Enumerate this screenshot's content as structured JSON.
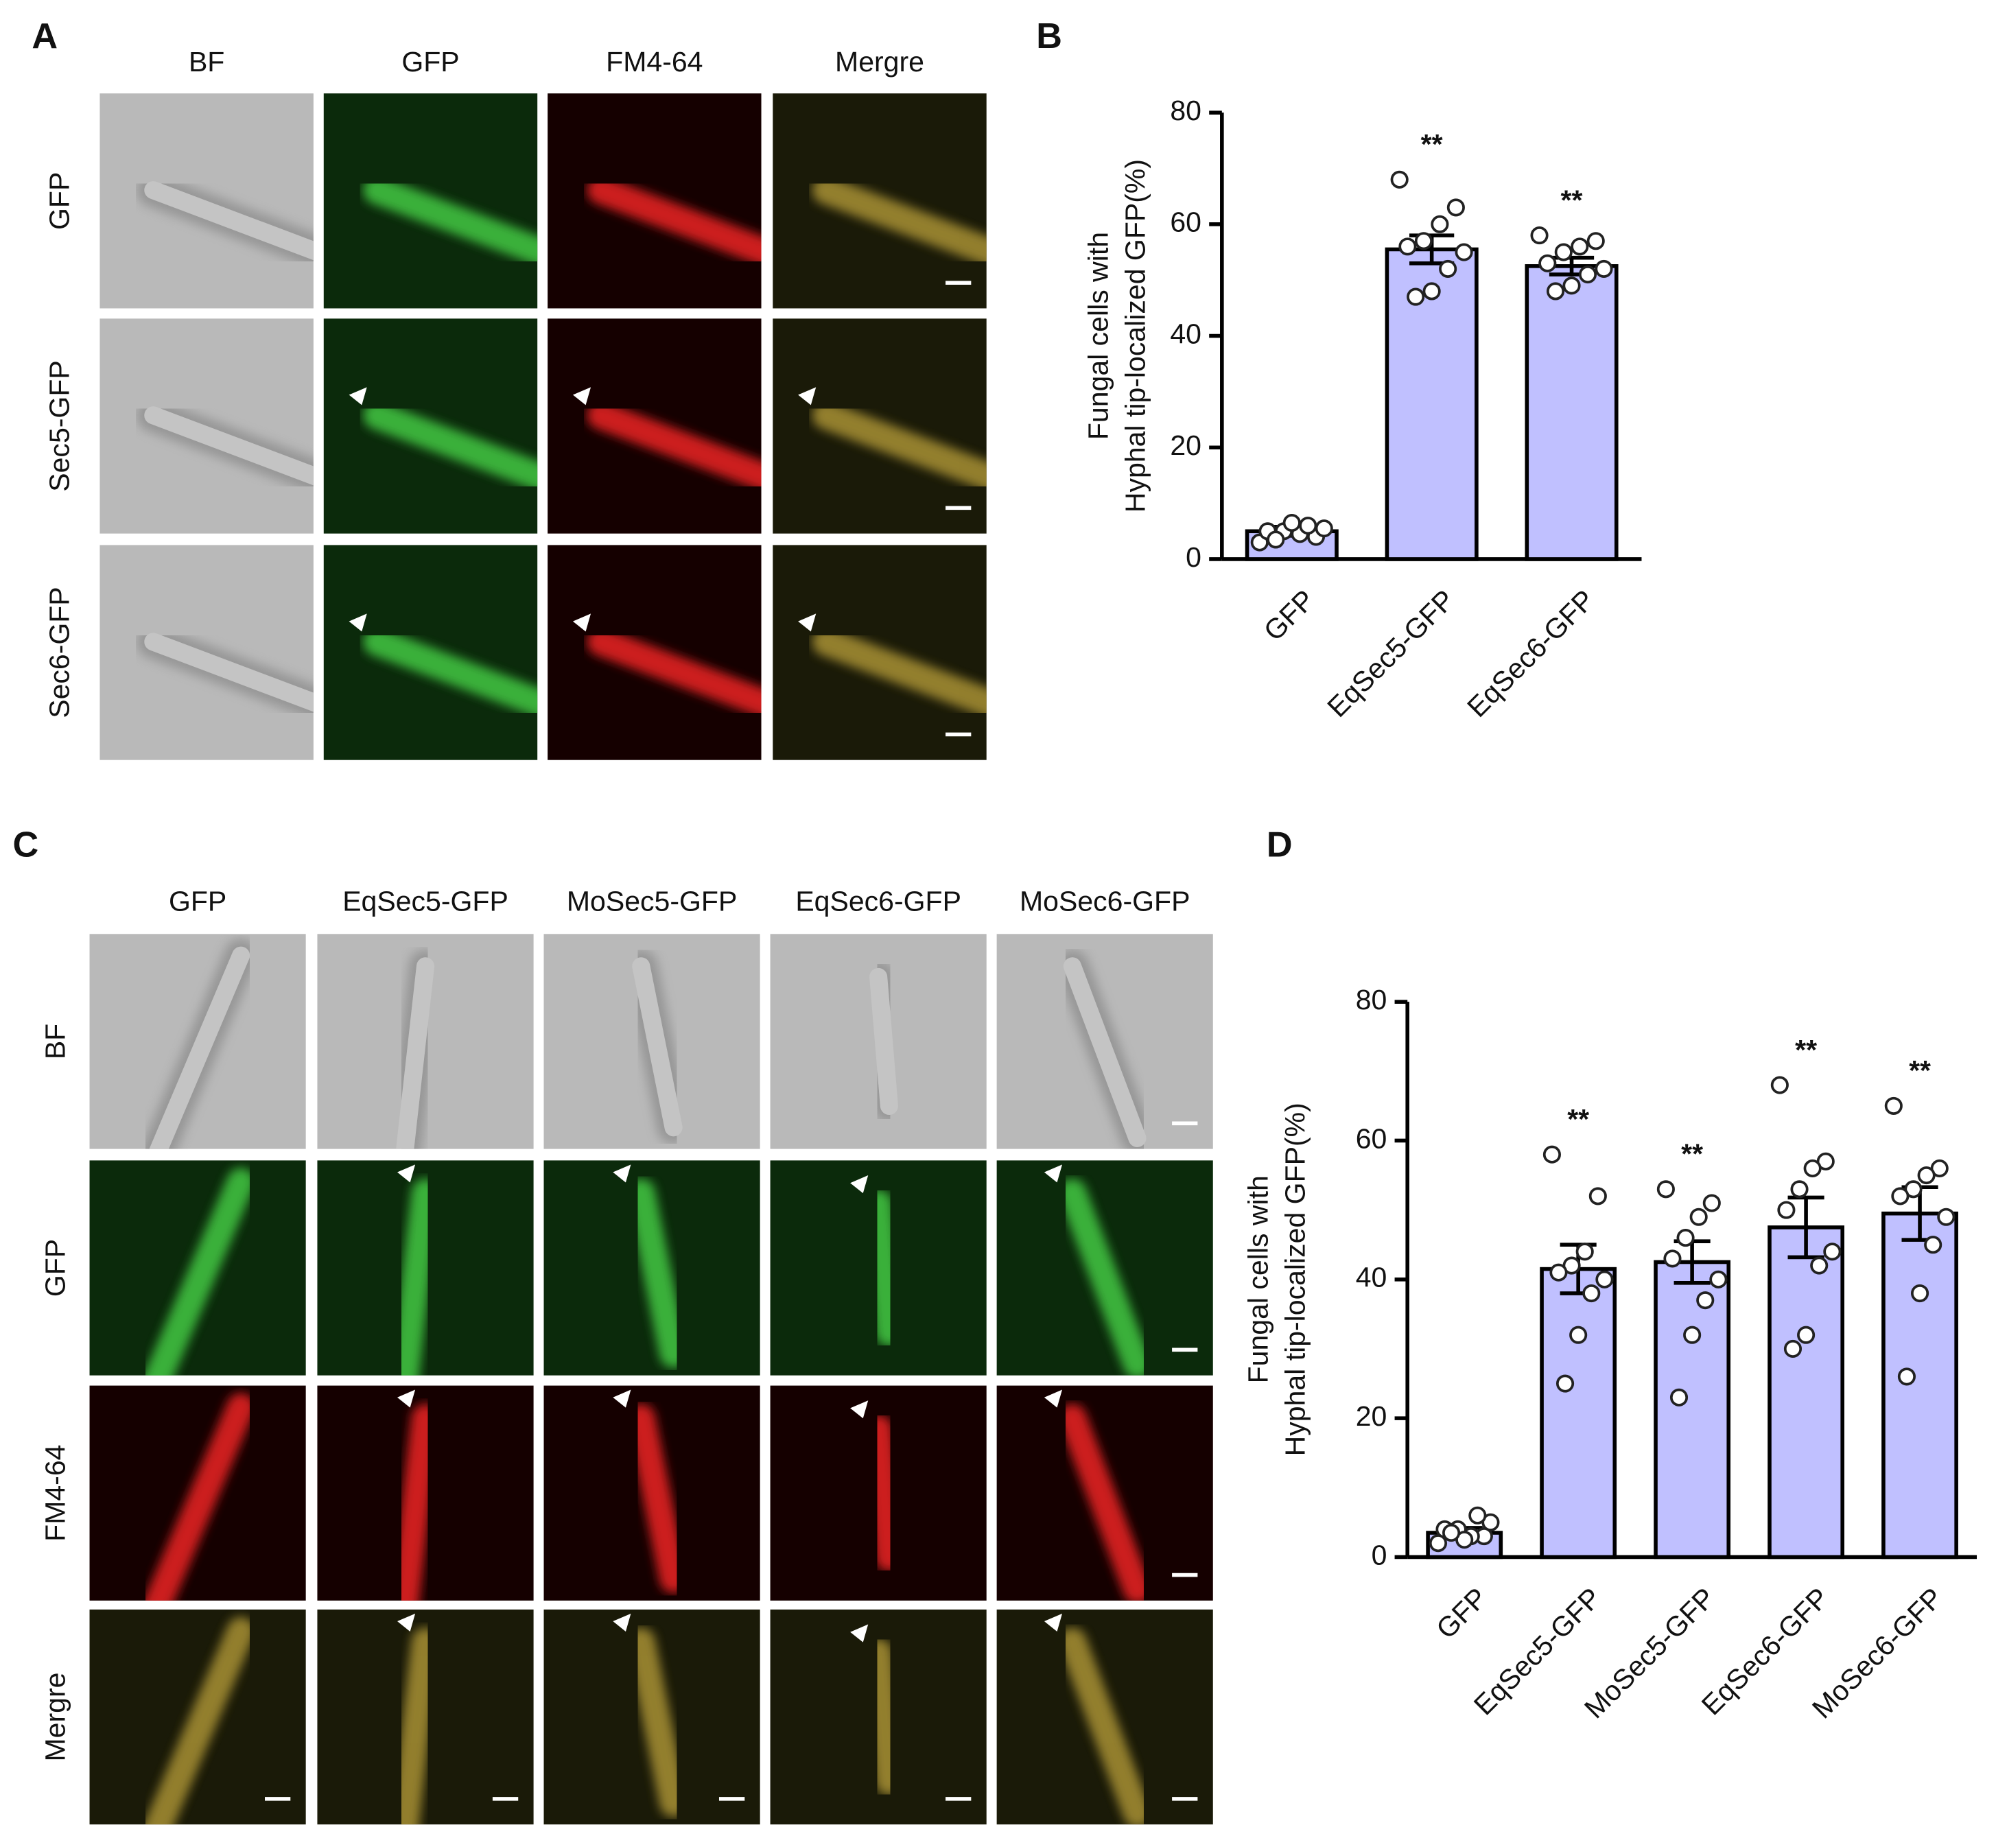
{
  "panels": {
    "A": {
      "letter": "A",
      "columns": [
        "BF",
        "GFP",
        "FM4-64",
        "Mergre"
      ],
      "rows": [
        "GFP",
        "Sec5-GFP",
        "Sec6-GFP"
      ]
    },
    "B": {
      "letter": "B"
    },
    "C": {
      "letter": "C",
      "columns": [
        "GFP",
        "EqSec5-GFP",
        "MoSec5-GFP",
        "EqSec6-GFP",
        "MoSec6-GFP"
      ],
      "rows": [
        "BF",
        "GFP",
        "FM4-64",
        "Mergre"
      ]
    },
    "D": {
      "letter": "D"
    }
  },
  "chart_data": [
    {
      "type": "bar",
      "ylabel": [
        "Fungal cells with",
        "Hyphal tip-localized GFP(%)"
      ],
      "categories": [
        "GFP",
        "EqSec5-GFP",
        "EqSec6-GFP"
      ],
      "values": [
        5,
        55.5,
        52.5
      ],
      "errors": [
        0.8,
        2.5,
        1.5
      ],
      "significance": [
        null,
        "**",
        "**"
      ],
      "points": [
        [
          3,
          4,
          4.5,
          5,
          5,
          5.5,
          6,
          6.5,
          3.5
        ],
        [
          68,
          63,
          60,
          57,
          56,
          55,
          52,
          48,
          47
        ],
        [
          58,
          57,
          56,
          55,
          53,
          52,
          51,
          49,
          48
        ]
      ],
      "color": "#c0c0ff",
      "ylim": [
        0,
        80
      ],
      "yticks": [
        0,
        20,
        40,
        60,
        80
      ]
    },
    {
      "type": "bar",
      "ylabel": [
        "Fungal cells with",
        "Hyphal tip-localized GFP(%)"
      ],
      "categories": [
        "GFP",
        "EqSec5-GFP",
        "MoSec5-GFP",
        "EqSec6-GFP",
        "MoSec6-GFP"
      ],
      "values": [
        3.5,
        41.5,
        42.5,
        47.5,
        49.5
      ],
      "errors": [
        0.7,
        3.5,
        3,
        4.3,
        3.8
      ],
      "significance": [
        null,
        "**",
        "**",
        "**",
        "**"
      ],
      "points": [
        [
          2,
          3,
          3,
          4,
          4,
          5,
          6,
          2.5,
          3.5
        ],
        [
          58,
          52,
          44,
          42,
          41,
          40,
          38,
          32,
          25
        ],
        [
          53,
          51,
          49,
          46,
          43,
          40,
          37,
          32,
          23
        ],
        [
          68,
          57,
          56,
          53,
          50,
          44,
          42,
          32,
          30
        ],
        [
          65,
          56,
          55,
          53,
          52,
          49,
          45,
          38,
          26
        ]
      ],
      "color": "#c0c0ff",
      "ylim": [
        0,
        80
      ],
      "yticks": [
        0,
        20,
        40,
        60,
        80
      ]
    }
  ]
}
